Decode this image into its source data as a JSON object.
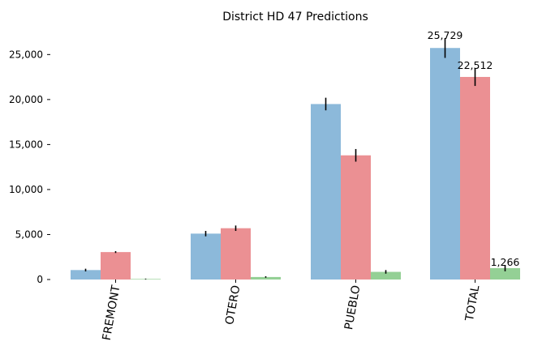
{
  "chart_data": {
    "type": "bar",
    "title": "District HD 47 Predictions",
    "xlabel": "",
    "ylabel": "",
    "categories": [
      "FREMONT",
      "OTERO",
      "PUEBLO",
      "TOTAL"
    ],
    "ylim": [
      0,
      27500
    ],
    "yticks": [
      0,
      5000,
      10000,
      15000,
      20000,
      25000
    ],
    "ytick_labels": [
      "0",
      "5,000",
      "10,000",
      "15,000",
      "20,000",
      "25,000"
    ],
    "grid": false,
    "legend": "none",
    "series": [
      {
        "color": "#8cb9da",
        "values": [
          1050,
          5100,
          19500,
          25729
        ],
        "error": [
          150,
          300,
          700,
          1100
        ],
        "labels": [
          "",
          "",
          "",
          "25,729"
        ]
      },
      {
        "color": "#eb9093",
        "values": [
          3050,
          5700,
          13800,
          22512
        ],
        "error": [
          100,
          300,
          700,
          1000
        ],
        "labels": [
          "",
          "",
          "",
          "22,512"
        ]
      },
      {
        "color": "#94d095",
        "values": [
          60,
          280,
          850,
          1266
        ],
        "error": [
          40,
          80,
          200,
          350
        ],
        "labels": [
          "",
          "",
          "",
          "1,266"
        ]
      }
    ]
  }
}
